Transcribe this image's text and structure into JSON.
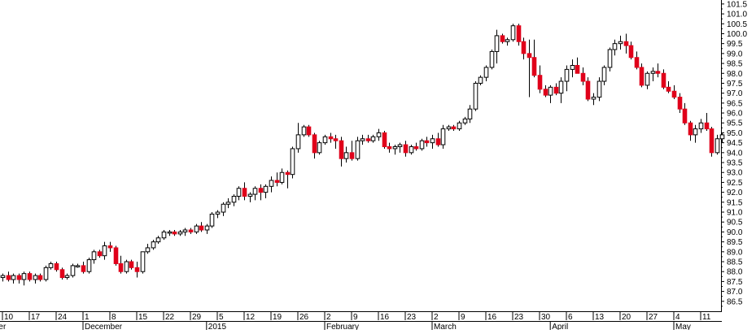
{
  "chart_data": {
    "type": "candlestick",
    "title": "",
    "xlabel": "",
    "ylabel": "",
    "ylim": [
      86.0,
      101.7
    ],
    "y_ticks": [
      "86.5",
      "87.0",
      "87.5",
      "88.0",
      "88.5",
      "89.0",
      "89.5",
      "90.0",
      "90.5",
      "91.0",
      "91.5",
      "92.0",
      "92.5",
      "93.0",
      "93.5",
      "94.0",
      "94.5",
      "95.0",
      "95.5",
      "96.0",
      "96.5",
      "97.0",
      "97.5",
      "98.0",
      "98.5",
      "99.0",
      "99.5",
      "100.0",
      "100.5",
      "101.0",
      "101.5"
    ],
    "day_labels": [
      {
        "label": "10",
        "day": 0
      },
      {
        "label": "17",
        "day": 5
      },
      {
        "label": "24",
        "day": 10
      },
      {
        "label": "1",
        "day": 15
      },
      {
        "label": "8",
        "day": 20
      },
      {
        "label": "15",
        "day": 25
      },
      {
        "label": "22",
        "day": 30
      },
      {
        "label": "29",
        "day": 35
      },
      {
        "label": "5",
        "day": 40
      },
      {
        "label": "12",
        "day": 45
      },
      {
        "label": "19",
        "day": 50
      },
      {
        "label": "26",
        "day": 55
      },
      {
        "label": "2",
        "day": 60
      },
      {
        "label": "9",
        "day": 65
      },
      {
        "label": "16",
        "day": 70
      },
      {
        "label": "23",
        "day": 75
      },
      {
        "label": "2",
        "day": 80
      },
      {
        "label": "9",
        "day": 85
      },
      {
        "label": "16",
        "day": 90
      },
      {
        "label": "23",
        "day": 95
      },
      {
        "label": "30",
        "day": 100
      },
      {
        "label": "6",
        "day": 105
      },
      {
        "label": "13",
        "day": 110
      },
      {
        "label": "20",
        "day": 115
      },
      {
        "label": "27",
        "day": 120
      },
      {
        "label": "4",
        "day": 125
      },
      {
        "label": "11",
        "day": 130
      }
    ],
    "month_labels": [
      {
        "label": "er",
        "day": -1
      },
      {
        "label": "December",
        "day": 15
      },
      {
        "label": "2015",
        "day": 38
      },
      {
        "label": "February",
        "day": 60
      },
      {
        "label": "March",
        "day": 80
      },
      {
        "label": "April",
        "day": 102
      },
      {
        "label": "May",
        "day": 125
      }
    ],
    "colors": {
      "up": "#ffffff",
      "down": "#e0001a",
      "doji": "#000000",
      "outline": "#000000"
    },
    "candles": [
      [
        87.7,
        87.9,
        87.5,
        87.8
      ],
      [
        87.8,
        88.0,
        87.5,
        87.6
      ],
      [
        87.6,
        87.9,
        87.4,
        87.8
      ],
      [
        87.8,
        87.9,
        87.4,
        87.6
      ],
      [
        87.6,
        88.0,
        87.3,
        87.9
      ],
      [
        87.9,
        88.0,
        87.5,
        87.6
      ],
      [
        87.6,
        87.9,
        87.4,
        87.8
      ],
      [
        87.8,
        87.9,
        87.5,
        87.6
      ],
      [
        87.6,
        88.3,
        87.5,
        88.2
      ],
      [
        88.2,
        88.5,
        88.1,
        88.4
      ],
      [
        88.4,
        88.5,
        88.0,
        88.1
      ],
      [
        88.1,
        88.2,
        87.6,
        87.7
      ],
      [
        87.7,
        87.9,
        87.6,
        87.8
      ],
      [
        87.8,
        88.4,
        87.7,
        88.3
      ],
      [
        88.3,
        88.4,
        88.2,
        88.3
      ],
      [
        88.3,
        88.5,
        87.9,
        88.0
      ],
      [
        88.0,
        88.7,
        87.9,
        88.6
      ],
      [
        88.6,
        89.1,
        88.4,
        89.0
      ],
      [
        89.0,
        89.1,
        88.7,
        88.8
      ],
      [
        88.8,
        89.5,
        88.6,
        89.3
      ],
      [
        89.3,
        89.5,
        89.0,
        89.2
      ],
      [
        89.2,
        89.3,
        88.3,
        88.4
      ],
      [
        88.4,
        88.8,
        87.9,
        88.0
      ],
      [
        88.0,
        88.6,
        87.9,
        88.5
      ],
      [
        88.5,
        88.6,
        88.1,
        88.2
      ],
      [
        88.2,
        88.5,
        87.7,
        88.0
      ],
      [
        88.0,
        89.0,
        87.9,
        89.0
      ],
      [
        89.0,
        89.4,
        88.9,
        89.2
      ],
      [
        89.2,
        89.6,
        89.1,
        89.5
      ],
      [
        89.5,
        89.8,
        89.4,
        89.7
      ],
      [
        89.7,
        90.1,
        89.6,
        90.0
      ],
      [
        90.0,
        90.1,
        89.8,
        90.0
      ],
      [
        90.0,
        90.1,
        89.8,
        89.9
      ],
      [
        89.9,
        90.1,
        89.8,
        90.0
      ],
      [
        90.0,
        90.2,
        89.8,
        90.1
      ],
      [
        90.1,
        90.2,
        89.9,
        90.0
      ],
      [
        90.0,
        90.4,
        89.9,
        90.3
      ],
      [
        90.3,
        90.5,
        90.0,
        90.1
      ],
      [
        90.1,
        90.4,
        89.9,
        90.3
      ],
      [
        90.3,
        91.0,
        90.2,
        90.9
      ],
      [
        90.9,
        91.1,
        90.7,
        91.0
      ],
      [
        91.0,
        91.5,
        90.8,
        91.4
      ],
      [
        91.4,
        91.7,
        91.2,
        91.5
      ],
      [
        91.5,
        91.9,
        91.3,
        91.8
      ],
      [
        91.8,
        92.3,
        91.6,
        92.2
      ],
      [
        92.2,
        92.5,
        91.6,
        91.8
      ],
      [
        91.8,
        92.0,
        91.5,
        91.9
      ],
      [
        91.9,
        92.3,
        91.6,
        92.2
      ],
      [
        92.2,
        92.4,
        91.6,
        92.0
      ],
      [
        92.0,
        92.4,
        91.7,
        92.3
      ],
      [
        92.3,
        92.8,
        92.0,
        92.6
      ],
      [
        92.6,
        93.0,
        92.3,
        92.5
      ],
      [
        92.5,
        93.2,
        92.4,
        93.0
      ],
      [
        93.0,
        93.1,
        92.2,
        92.9
      ],
      [
        92.9,
        94.3,
        92.7,
        94.2
      ],
      [
        94.2,
        95.5,
        94.0,
        94.9
      ],
      [
        94.9,
        95.4,
        94.8,
        95.3
      ],
      [
        95.3,
        95.4,
        94.8,
        94.9
      ],
      [
        94.9,
        95.0,
        93.7,
        94.0
      ],
      [
        94.0,
        94.6,
        93.9,
        94.5
      ],
      [
        94.5,
        94.9,
        94.4,
        94.8
      ],
      [
        94.8,
        95.0,
        94.5,
        94.7
      ],
      [
        94.7,
        94.9,
        94.2,
        94.6
      ],
      [
        94.6,
        94.8,
        93.3,
        93.7
      ],
      [
        93.7,
        94.3,
        93.5,
        94.0
      ],
      [
        94.0,
        94.6,
        93.6,
        93.7
      ],
      [
        93.7,
        94.8,
        93.6,
        94.6
      ],
      [
        94.6,
        94.9,
        94.4,
        94.7
      ],
      [
        94.7,
        94.9,
        94.5,
        94.6
      ],
      [
        94.6,
        94.9,
        94.5,
        94.8
      ],
      [
        94.8,
        95.2,
        94.6,
        95.0
      ],
      [
        95.0,
        95.1,
        94.2,
        94.3
      ],
      [
        94.3,
        94.5,
        94.0,
        94.2
      ],
      [
        94.2,
        94.4,
        93.9,
        94.3
      ],
      [
        94.3,
        94.5,
        94.0,
        94.4
      ],
      [
        94.4,
        94.6,
        93.8,
        94.0
      ],
      [
        94.0,
        94.4,
        93.9,
        94.3
      ],
      [
        94.3,
        94.5,
        94.1,
        94.2
      ],
      [
        94.2,
        94.7,
        94.1,
        94.6
      ],
      [
        94.6,
        94.8,
        94.3,
        94.5
      ],
      [
        94.5,
        94.9,
        94.2,
        94.7
      ],
      [
        94.7,
        95.0,
        94.3,
        94.4
      ],
      [
        94.4,
        95.4,
        94.2,
        95.2
      ],
      [
        95.2,
        95.4,
        95.1,
        95.3
      ],
      [
        95.3,
        95.4,
        95.1,
        95.2
      ],
      [
        95.2,
        95.6,
        95.1,
        95.5
      ],
      [
        95.5,
        95.8,
        95.4,
        95.7
      ],
      [
        95.7,
        96.4,
        95.5,
        96.2
      ],
      [
        96.2,
        97.6,
        96.1,
        97.5
      ],
      [
        97.5,
        97.9,
        97.4,
        97.8
      ],
      [
        97.8,
        98.4,
        97.6,
        98.3
      ],
      [
        98.3,
        99.2,
        98.2,
        99.1
      ],
      [
        99.1,
        100.2,
        98.5,
        99.9
      ],
      [
        99.9,
        100.0,
        99.5,
        99.6
      ],
      [
        99.6,
        99.8,
        99.4,
        99.7
      ],
      [
        99.7,
        100.5,
        99.6,
        100.4
      ],
      [
        100.4,
        100.5,
        99.4,
        99.6
      ],
      [
        99.6,
        99.8,
        98.7,
        99.0
      ],
      [
        99.0,
        99.7,
        96.8,
        98.8
      ],
      [
        98.8,
        99.7,
        97.8,
        97.9
      ],
      [
        97.9,
        98.4,
        97.0,
        97.2
      ],
      [
        97.2,
        97.4,
        96.8,
        96.9
      ],
      [
        96.9,
        97.4,
        96.5,
        97.3
      ],
      [
        97.3,
        97.5,
        96.9,
        97.0
      ],
      [
        97.0,
        97.8,
        96.5,
        97.6
      ],
      [
        97.6,
        98.4,
        97.1,
        98.2
      ],
      [
        98.2,
        98.7,
        97.8,
        98.4
      ],
      [
        98.4,
        98.8,
        98.0,
        98.0
      ],
      [
        98.0,
        98.3,
        97.4,
        97.6
      ],
      [
        97.6,
        97.8,
        96.6,
        96.7
      ],
      [
        96.7,
        97.0,
        96.4,
        96.8
      ],
      [
        96.8,
        97.8,
        96.6,
        97.6
      ],
      [
        97.6,
        98.4,
        97.4,
        98.3
      ],
      [
        98.3,
        99.3,
        98.1,
        99.2
      ],
      [
        99.2,
        99.7,
        98.9,
        99.5
      ],
      [
        99.5,
        99.9,
        99.2,
        99.6
      ],
      [
        99.6,
        100.0,
        99.0,
        99.4
      ],
      [
        99.4,
        99.6,
        98.7,
        98.8
      ],
      [
        98.8,
        99.1,
        98.2,
        98.3
      ],
      [
        98.3,
        98.5,
        97.3,
        97.4
      ],
      [
        97.4,
        98.1,
        97.2,
        98.0
      ],
      [
        98.0,
        98.3,
        97.6,
        98.1
      ],
      [
        98.1,
        98.5,
        97.8,
        98.0
      ],
      [
        98.0,
        98.2,
        97.2,
        97.3
      ],
      [
        97.3,
        97.6,
        97.0,
        97.1
      ],
      [
        97.1,
        97.4,
        96.7,
        96.8
      ],
      [
        96.8,
        97.0,
        96.0,
        96.2
      ],
      [
        96.2,
        96.5,
        95.4,
        95.5
      ],
      [
        95.5,
        95.6,
        94.6,
        94.9
      ],
      [
        94.9,
        95.4,
        94.5,
        95.2
      ],
      [
        95.2,
        95.7,
        95.0,
        95.5
      ],
      [
        95.5,
        96.0,
        95.1,
        95.2
      ],
      [
        95.2,
        95.3,
        93.8,
        94.0
      ],
      [
        94.0,
        94.9,
        93.9,
        94.7
      ],
      [
        94.7,
        95.0,
        94.5,
        94.9
      ]
    ]
  }
}
